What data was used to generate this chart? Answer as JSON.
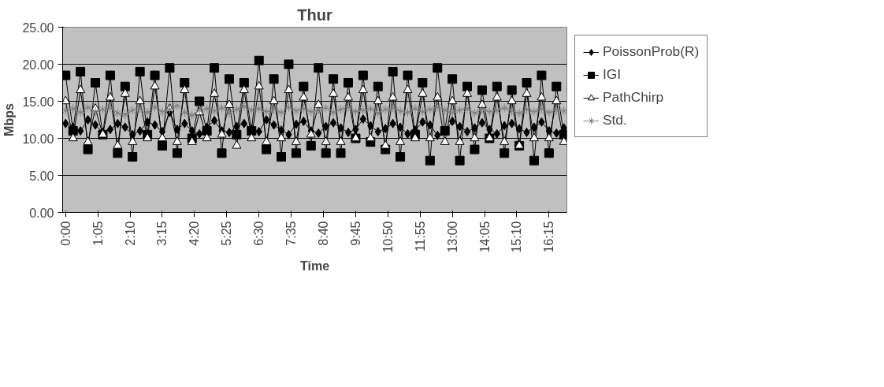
{
  "chart_data": {
    "type": "line",
    "title": "Thur",
    "xlabel": "Time",
    "ylabel": "Mbps",
    "x": [
      0,
      0.25,
      0.5,
      0.75,
      1,
      1.25,
      1.5,
      1.75,
      2,
      2.25,
      2.5,
      2.75,
      3,
      3.25,
      3.5,
      3.75,
      4,
      4.25,
      4.5,
      4.75,
      5,
      5.25,
      5.5,
      5.75,
      6,
      6.25,
      6.5,
      6.75,
      7,
      7.25,
      7.5,
      7.75,
      8,
      8.25,
      8.5,
      8.75,
      9,
      9.25,
      9.5,
      9.75,
      10,
      10.25,
      10.5,
      10.75,
      11,
      11.25,
      11.5,
      11.75,
      12,
      12.25,
      12.5,
      12.75,
      13,
      13.25,
      13.5,
      13.75,
      14,
      14.25,
      14.5,
      14.75,
      15,
      15.25,
      15.5,
      15.75,
      16,
      16.25,
      16.5,
      16.75
    ],
    "series": [
      {
        "name": "PoissonProb(R)",
        "color": "#000000",
        "marker": "diamond",
        "values": [
          12.0,
          11.5,
          11.0,
          12.5,
          11.8,
          10.8,
          11.2,
          12.0,
          11.5,
          10.5,
          11.0,
          12.2,
          11.8,
          10.9,
          13.5,
          11.2,
          12.0,
          11.0,
          10.6,
          11.5,
          12.4,
          11.0,
          10.8,
          11.6,
          12.0,
          11.3,
          10.9,
          12.5,
          11.8,
          11.1,
          10.5,
          11.9,
          12.3,
          11.0,
          10.7,
          11.6,
          12.1,
          11.4,
          10.8,
          11.2,
          12.6,
          11.7,
          10.9,
          11.3,
          12.0,
          11.5,
          10.6,
          11.1,
          12.2,
          11.8,
          10.4,
          11.0,
          12.3,
          11.6,
          10.9,
          11.4,
          12.1,
          11.2,
          10.6,
          11.7,
          12.0,
          11.3,
          10.8,
          11.5,
          12.2,
          11.0,
          10.7,
          11.4
        ]
      },
      {
        "name": "IGI",
        "color": "#000000",
        "marker": "square",
        "values": [
          18.5,
          11.0,
          19.0,
          8.5,
          17.5,
          10.5,
          18.5,
          8.0,
          17.0,
          7.5,
          19.0,
          10.5,
          18.5,
          9.0,
          19.5,
          8.0,
          17.5,
          10.0,
          15.0,
          11.0,
          19.5,
          8.0,
          18.0,
          10.5,
          17.5,
          11.0,
          20.5,
          8.5,
          18.0,
          7.5,
          20.0,
          8.0,
          17.0,
          9.0,
          19.5,
          8.0,
          18.0,
          8.0,
          17.5,
          10.0,
          18.5,
          9.5,
          17.0,
          8.5,
          19.0,
          7.5,
          18.5,
          10.5,
          17.5,
          7.0,
          19.5,
          11.0,
          18.0,
          7.0,
          17.0,
          8.5,
          16.5,
          10.0,
          17.0,
          8.0,
          16.5,
          9.0,
          17.5,
          7.0,
          18.5,
          8.0,
          17.0,
          10.5
        ]
      },
      {
        "name": "PathChirp",
        "color": "#ffffff",
        "marker": "triangle",
        "values": [
          15.0,
          10.0,
          16.5,
          9.5,
          14.0,
          10.5,
          15.5,
          9.0,
          16.0,
          9.5,
          15.0,
          10.0,
          17.0,
          10.0,
          14.0,
          9.5,
          16.5,
          9.5,
          13.5,
          10.0,
          16.0,
          10.5,
          14.5,
          9.0,
          16.5,
          10.0,
          17.0,
          9.5,
          15.0,
          10.0,
          16.5,
          9.5,
          15.5,
          10.5,
          14.5,
          9.5,
          16.0,
          9.5,
          15.5,
          10.0,
          16.5,
          10.0,
          15.0,
          9.0,
          15.5,
          9.5,
          16.5,
          10.0,
          16.0,
          10.0,
          15.5,
          9.5,
          15.0,
          9.5,
          16.0,
          10.0,
          14.5,
          10.0,
          15.5,
          9.5,
          15.0,
          9.0,
          16.0,
          10.0,
          15.5,
          10.0,
          15.0,
          9.5
        ]
      },
      {
        "name": "Std.",
        "color": "#808080",
        "marker": "cross",
        "values": [
          13.8,
          14.0,
          13.5,
          14.2,
          13.6,
          13.9,
          14.1,
          13.4,
          13.2,
          13.8,
          14.0,
          13.5,
          14.2,
          13.6,
          13.9,
          14.4,
          13.5,
          13.1,
          13.8,
          14.0,
          13.7,
          14.1,
          13.4,
          13.9,
          14.3,
          13.8,
          14.0,
          13.6,
          13.9,
          13.5,
          14.2,
          13.7,
          14.0,
          13.6,
          13.8,
          14.1,
          13.5,
          13.9,
          14.2,
          13.6,
          13.8,
          14.0,
          13.4,
          13.9,
          14.1,
          13.7,
          13.5,
          14.0,
          13.6,
          13.9,
          14.2,
          13.8,
          13.5,
          13.8,
          14.0,
          13.4,
          13.9,
          13.6,
          13.8,
          14.1,
          13.7,
          13.4,
          13.9,
          13.6,
          14.0,
          13.5,
          13.8,
          13.7
        ]
      }
    ],
    "xlim": [
      -0.1,
      16.85
    ],
    "xticks": [
      {
        "value": 0,
        "label": "0:00"
      },
      {
        "value": 1.0833,
        "label": "1:05"
      },
      {
        "value": 2.1667,
        "label": "2:10"
      },
      {
        "value": 3.25,
        "label": "3:15"
      },
      {
        "value": 4.3333,
        "label": "4:20"
      },
      {
        "value": 5.4167,
        "label": "5:25"
      },
      {
        "value": 6.5,
        "label": "6:30"
      },
      {
        "value": 7.5833,
        "label": "7:35"
      },
      {
        "value": 8.6667,
        "label": "8:40"
      },
      {
        "value": 9.75,
        "label": "9:45"
      },
      {
        "value": 10.8333,
        "label": "10:50"
      },
      {
        "value": 11.9167,
        "label": "11:55"
      },
      {
        "value": 13,
        "label": "13:00"
      },
      {
        "value": 14.0833,
        "label": "14:05"
      },
      {
        "value": 15.1667,
        "label": "15:10"
      },
      {
        "value": 16.25,
        "label": "16:15"
      }
    ],
    "ylim": [
      0,
      25
    ],
    "yticks": [
      {
        "value": 0,
        "label": "0.00"
      },
      {
        "value": 5,
        "label": "5.00"
      },
      {
        "value": 10,
        "label": "10.00"
      },
      {
        "value": 15,
        "label": "15.00"
      },
      {
        "value": 20,
        "label": "20.00"
      },
      {
        "value": 25,
        "label": "25.00"
      }
    ],
    "grid": "y",
    "legend": "right",
    "line_style": "solid"
  }
}
